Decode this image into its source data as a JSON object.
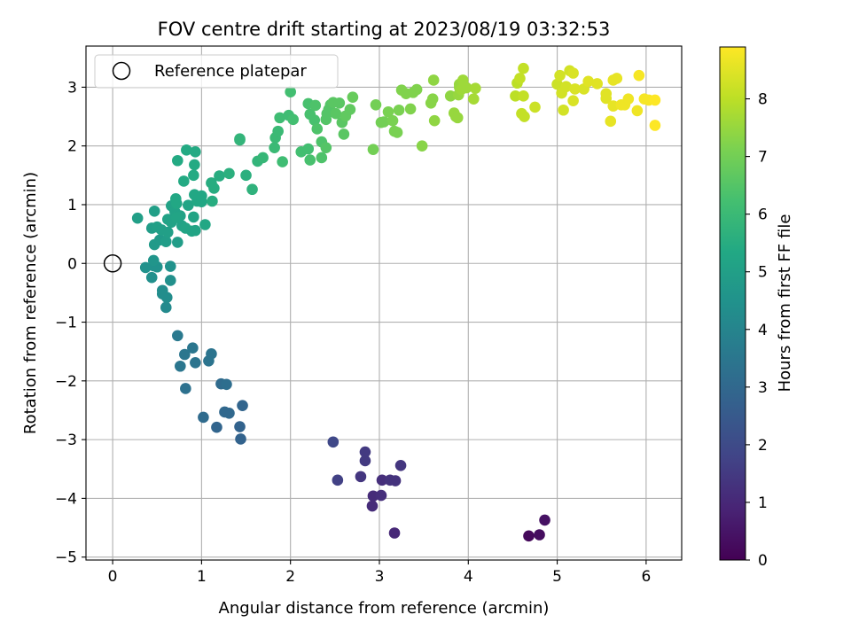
{
  "chart_data": {
    "type": "scatter",
    "title": "FOV centre drift starting at 2023/08/19 03:32:53",
    "xlabel": "Angular distance from reference (arcmin)",
    "ylabel": "Rotation from reference (arcmin)",
    "colorbar_label": "Hours from first FF file",
    "colormap": "viridis",
    "xlim": [
      -0.3,
      6.4
    ],
    "ylim": [
      -5.05,
      3.7
    ],
    "clim": [
      0,
      8.9
    ],
    "xticks": [
      0,
      1,
      2,
      3,
      4,
      5,
      6
    ],
    "yticks": [
      -5,
      -4,
      -3,
      -2,
      -1,
      0,
      1,
      2,
      3
    ],
    "cticks": [
      0,
      1,
      2,
      3,
      4,
      5,
      6,
      7,
      8
    ],
    "grid": true,
    "legend": {
      "location": "upper-left",
      "entries": [
        "Reference platepar"
      ]
    },
    "reference_point": {
      "x": 0,
      "y": 0
    },
    "points": [
      [
        4.68,
        -4.64,
        0.2
      ],
      [
        4.8,
        -4.62,
        0.3
      ],
      [
        4.86,
        -4.37,
        0.4
      ],
      [
        3.17,
        -4.59,
        1.0
      ],
      [
        2.92,
        -4.13,
        1.1
      ],
      [
        2.93,
        -3.96,
        1.1
      ],
      [
        3.02,
        -3.95,
        1.2
      ],
      [
        3.03,
        -3.69,
        1.2
      ],
      [
        3.12,
        -3.69,
        1.3
      ],
      [
        3.18,
        -3.7,
        1.3
      ],
      [
        3.24,
        -3.44,
        1.4
      ],
      [
        2.79,
        -3.63,
        1.4
      ],
      [
        2.84,
        -3.36,
        1.5
      ],
      [
        2.84,
        -3.21,
        1.5
      ],
      [
        2.53,
        -3.69,
        1.7
      ],
      [
        2.48,
        -3.04,
        1.9
      ],
      [
        1.44,
        -2.99,
        2.8
      ],
      [
        1.43,
        -2.78,
        2.8
      ],
      [
        1.17,
        -2.79,
        2.9
      ],
      [
        1.46,
        -2.42,
        2.9
      ],
      [
        1.31,
        -2.55,
        3.0
      ],
      [
        1.26,
        -2.53,
        3.0
      ],
      [
        1.02,
        -2.62,
        3.1
      ],
      [
        1.22,
        -2.05,
        3.1
      ],
      [
        1.28,
        -2.06,
        3.2
      ],
      [
        0.82,
        -2.13,
        3.3
      ],
      [
        1.08,
        -1.66,
        3.4
      ],
      [
        1.11,
        -1.54,
        3.4
      ],
      [
        0.93,
        -1.69,
        3.4
      ],
      [
        0.9,
        -1.44,
        3.5
      ],
      [
        0.81,
        -1.55,
        3.5
      ],
      [
        0.76,
        -1.75,
        3.5
      ],
      [
        0.73,
        -1.23,
        3.6
      ],
      [
        0.6,
        -0.75,
        4.2
      ],
      [
        0.61,
        -0.58,
        4.3
      ],
      [
        0.56,
        -0.46,
        4.3
      ],
      [
        0.56,
        -0.52,
        4.3
      ],
      [
        0.65,
        -0.29,
        4.4
      ],
      [
        0.44,
        -0.24,
        4.4
      ],
      [
        0.37,
        -0.07,
        4.5
      ],
      [
        0.46,
        -0.04,
        4.5
      ],
      [
        0.5,
        -0.06,
        4.5
      ],
      [
        0.65,
        -0.05,
        4.5
      ],
      [
        0.46,
        0.05,
        4.6
      ],
      [
        0.47,
        0.32,
        4.8
      ],
      [
        0.53,
        0.4,
        4.8
      ],
      [
        0.6,
        0.37,
        4.9
      ],
      [
        0.73,
        0.36,
        4.9
      ],
      [
        0.44,
        0.6,
        4.9
      ],
      [
        0.5,
        0.62,
        5.0
      ],
      [
        0.55,
        0.57,
        5.0
      ],
      [
        0.47,
        0.89,
        5.0
      ],
      [
        0.28,
        0.77,
        5.0
      ],
      [
        0.62,
        0.53,
        5.0
      ],
      [
        0.62,
        0.75,
        5.1
      ],
      [
        0.66,
        0.7,
        5.1
      ],
      [
        0.66,
        0.98,
        5.1
      ],
      [
        0.7,
        0.88,
        5.1
      ],
      [
        0.76,
        0.81,
        5.1
      ],
      [
        0.78,
        0.64,
        5.1
      ],
      [
        0.72,
        0.78,
        5.2
      ],
      [
        0.82,
        0.6,
        5.2
      ],
      [
        0.85,
        0.99,
        5.2
      ],
      [
        0.89,
        0.55,
        5.2
      ],
      [
        0.91,
        0.79,
        5.2
      ],
      [
        0.93,
        0.56,
        5.2
      ],
      [
        0.95,
        1.06,
        5.3
      ],
      [
        0.92,
        1.17,
        5.3
      ],
      [
        1.0,
        1.05,
        5.3
      ],
      [
        1.04,
        0.66,
        5.3
      ],
      [
        1.0,
        1.15,
        5.3
      ],
      [
        0.71,
        1.1,
        5.3
      ],
      [
        0.72,
        1.02,
        5.3
      ],
      [
        0.8,
        1.4,
        5.4
      ],
      [
        0.91,
        1.5,
        5.4
      ],
      [
        0.92,
        1.68,
        5.4
      ],
      [
        0.73,
        1.75,
        5.4
      ],
      [
        0.83,
        1.93,
        5.4
      ],
      [
        0.93,
        1.9,
        5.4
      ],
      [
        1.11,
        1.37,
        5.5
      ],
      [
        1.14,
        1.28,
        5.5
      ],
      [
        1.12,
        1.06,
        5.5
      ],
      [
        1.2,
        1.49,
        5.5
      ],
      [
        1.31,
        1.53,
        5.6
      ],
      [
        1.5,
        1.5,
        5.6
      ],
      [
        1.57,
        1.26,
        5.7
      ],
      [
        1.43,
        2.1,
        5.8
      ],
      [
        1.43,
        2.12,
        5.8
      ],
      [
        1.63,
        1.74,
        5.8
      ],
      [
        1.69,
        1.8,
        5.9
      ],
      [
        1.82,
        1.97,
        6.0
      ],
      [
        1.83,
        2.14,
        6.0
      ],
      [
        1.86,
        2.25,
        6.0
      ],
      [
        1.91,
        1.73,
        6.1
      ],
      [
        1.88,
        2.48,
        6.1
      ],
      [
        1.98,
        2.52,
        6.1
      ],
      [
        2.03,
        2.45,
        6.2
      ],
      [
        2.0,
        2.92,
        6.2
      ],
      [
        2.12,
        1.9,
        6.2
      ],
      [
        2.2,
        1.95,
        6.2
      ],
      [
        2.2,
        2.72,
        6.3
      ],
      [
        2.22,
        2.54,
        6.3
      ],
      [
        2.27,
        2.44,
        6.3
      ],
      [
        2.22,
        1.76,
        6.3
      ],
      [
        2.3,
        2.29,
        6.4
      ],
      [
        2.28,
        2.69,
        6.4
      ],
      [
        2.35,
        2.07,
        6.4
      ],
      [
        2.35,
        1.8,
        6.4
      ],
      [
        2.4,
        1.97,
        6.5
      ],
      [
        2.4,
        2.45,
        6.5
      ],
      [
        2.41,
        2.55,
        6.5
      ],
      [
        2.43,
        2.62,
        6.5
      ],
      [
        2.45,
        2.7,
        6.5
      ],
      [
        2.48,
        2.74,
        6.6
      ],
      [
        2.51,
        2.55,
        6.6
      ],
      [
        2.55,
        2.73,
        6.6
      ],
      [
        2.58,
        2.4,
        6.6
      ],
      [
        2.6,
        2.2,
        6.6
      ],
      [
        2.62,
        2.51,
        6.7
      ],
      [
        2.67,
        2.62,
        6.7
      ],
      [
        2.7,
        2.83,
        6.8
      ],
      [
        2.93,
        1.94,
        7.0
      ],
      [
        2.96,
        2.7,
        7.0
      ],
      [
        3.02,
        2.4,
        7.0
      ],
      [
        3.05,
        2.41,
        7.0
      ],
      [
        3.1,
        2.58,
        7.1
      ],
      [
        3.15,
        2.43,
        7.1
      ],
      [
        3.17,
        2.25,
        7.1
      ],
      [
        3.2,
        2.23,
        7.1
      ],
      [
        3.22,
        2.61,
        7.1
      ],
      [
        3.25,
        2.95,
        7.2
      ],
      [
        3.3,
        2.89,
        7.2
      ],
      [
        3.35,
        2.63,
        7.2
      ],
      [
        3.38,
        2.91,
        7.2
      ],
      [
        3.42,
        2.96,
        7.2
      ],
      [
        3.48,
        2.0,
        7.3
      ],
      [
        3.58,
        2.73,
        7.3
      ],
      [
        3.6,
        2.8,
        7.3
      ],
      [
        3.61,
        3.12,
        7.4
      ],
      [
        3.62,
        2.43,
        7.4
      ],
      [
        3.8,
        2.85,
        7.4
      ],
      [
        3.84,
        2.56,
        7.5
      ],
      [
        3.86,
        2.5,
        7.5
      ],
      [
        3.88,
        2.48,
        7.5
      ],
      [
        3.89,
        2.87,
        7.5
      ],
      [
        3.9,
        3.0,
        7.5
      ],
      [
        3.9,
        3.05,
        7.5
      ],
      [
        3.92,
        2.96,
        7.6
      ],
      [
        3.94,
        3.12,
        7.6
      ],
      [
        3.98,
        2.99,
        7.6
      ],
      [
        4.06,
        2.8,
        7.7
      ],
      [
        4.08,
        2.98,
        7.7
      ],
      [
        4.53,
        2.85,
        8.0
      ],
      [
        4.55,
        3.07,
        8.0
      ],
      [
        4.58,
        3.15,
        8.1
      ],
      [
        4.6,
        2.55,
        8.1
      ],
      [
        4.63,
        2.5,
        8.1
      ],
      [
        4.62,
        2.85,
        8.1
      ],
      [
        4.62,
        3.32,
        8.1
      ],
      [
        4.75,
        2.66,
        8.2
      ],
      [
        5.0,
        3.05,
        8.2
      ],
      [
        5.03,
        3.2,
        8.3
      ],
      [
        5.05,
        2.9,
        8.3
      ],
      [
        5.07,
        2.61,
        8.3
      ],
      [
        5.1,
        3.01,
        8.3
      ],
      [
        5.14,
        3.28,
        8.3
      ],
      [
        5.18,
        3.24,
        8.4
      ],
      [
        5.18,
        2.77,
        8.4
      ],
      [
        5.2,
        2.97,
        8.4
      ],
      [
        5.3,
        2.97,
        8.4
      ],
      [
        5.35,
        3.1,
        8.5
      ],
      [
        5.45,
        3.06,
        8.5
      ],
      [
        5.55,
        2.89,
        8.5
      ],
      [
        5.55,
        2.81,
        8.5
      ],
      [
        5.6,
        2.42,
        8.6
      ],
      [
        5.63,
        3.12,
        8.6
      ],
      [
        5.63,
        2.68,
        8.6
      ],
      [
        5.67,
        3.15,
        8.6
      ],
      [
        5.72,
        2.7,
        8.7
      ],
      [
        5.76,
        2.7,
        8.7
      ],
      [
        5.8,
        2.8,
        8.7
      ],
      [
        5.9,
        2.6,
        8.7
      ],
      [
        5.92,
        3.2,
        8.8
      ],
      [
        5.98,
        2.8,
        8.8
      ],
      [
        6.03,
        2.78,
        8.8
      ],
      [
        6.1,
        2.35,
        8.9
      ],
      [
        6.1,
        2.78,
        8.9
      ]
    ]
  }
}
